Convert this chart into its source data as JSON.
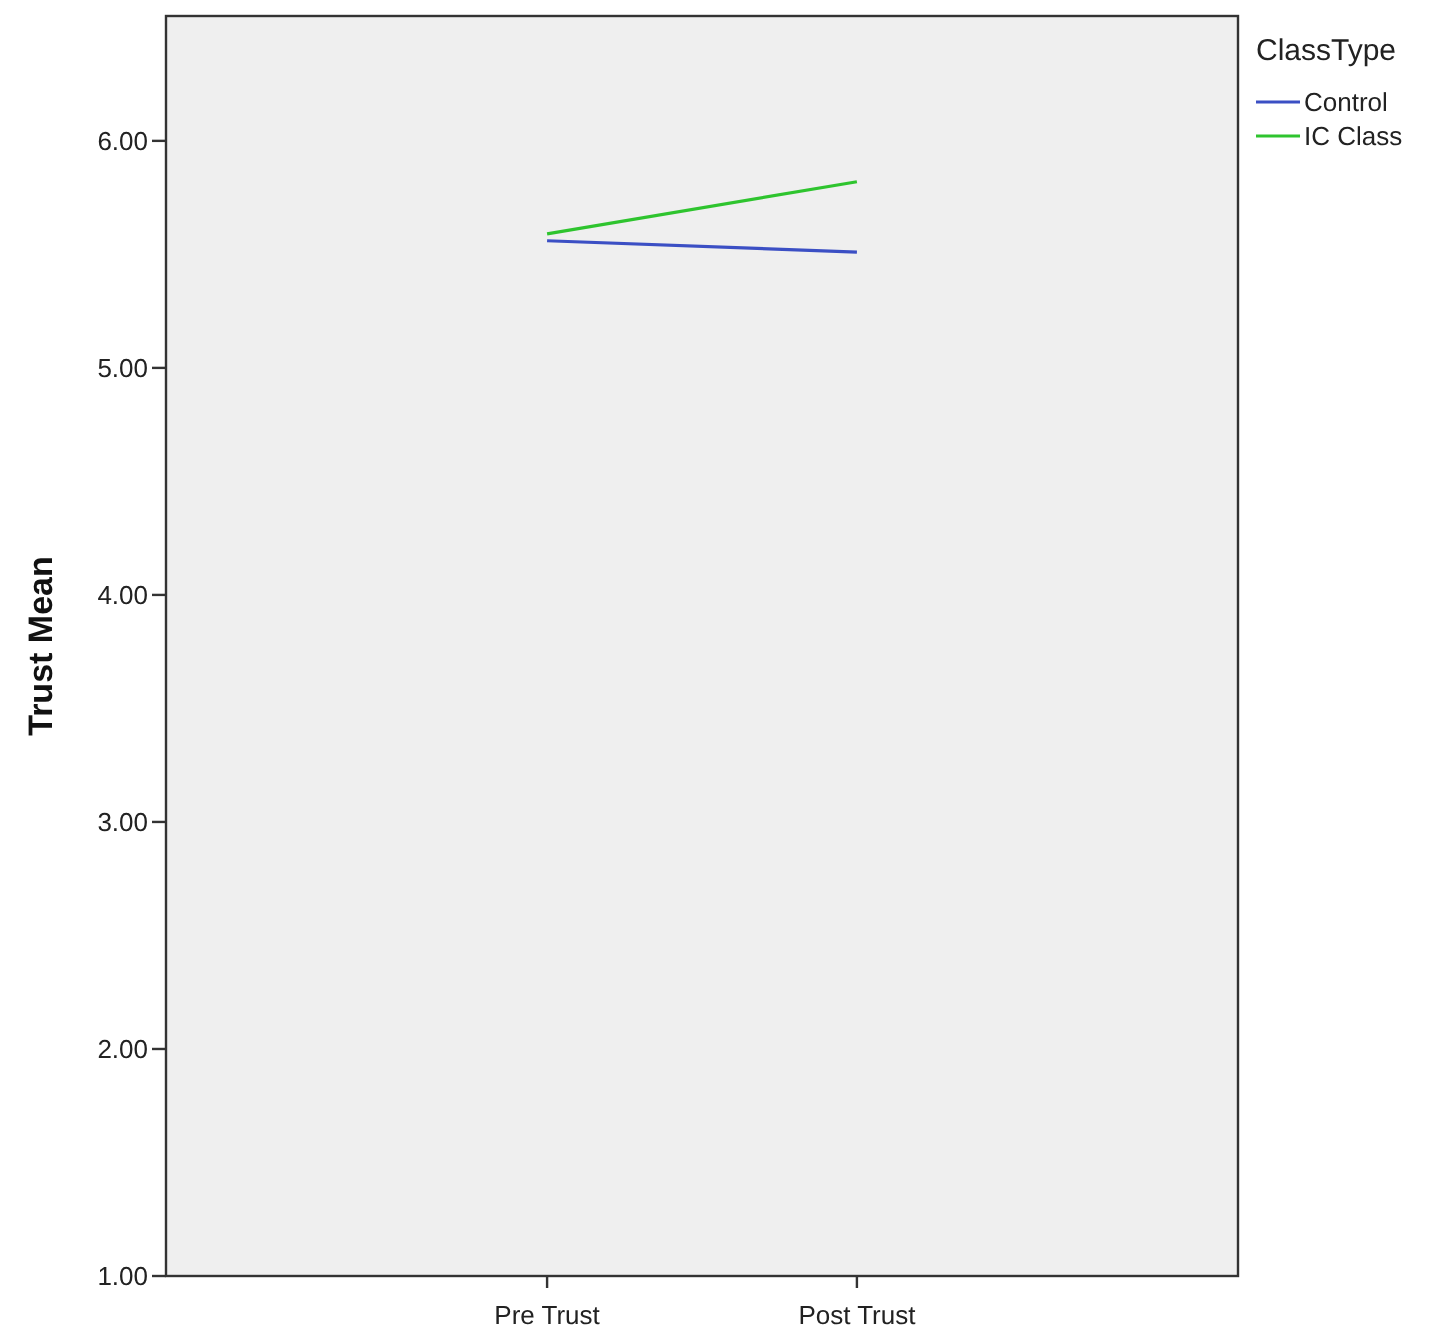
{
  "chart_data": {
    "type": "line",
    "ylabel": "Trust Mean",
    "legend_title": "ClassType",
    "legend": "top right",
    "grid": false,
    "marker": "none",
    "categories": [
      "Pre Trust",
      "Post Trust"
    ],
    "ylim": [
      1,
      6.55
    ],
    "yticks": [
      {
        "value": 1,
        "label": "1.00"
      },
      {
        "value": 2,
        "label": "2.00"
      },
      {
        "value": 3,
        "label": "3.00"
      },
      {
        "value": 4,
        "label": "4.00"
      },
      {
        "value": 5,
        "label": "5.00"
      },
      {
        "value": 6,
        "label": "6.00"
      }
    ],
    "series": [
      {
        "name": "Control",
        "color": "#3b4fc4",
        "values": [
          5.56,
          5.51
        ]
      },
      {
        "name": "IC Class",
        "color": "#2ec42e",
        "values": [
          5.59,
          5.82
        ]
      }
    ]
  }
}
